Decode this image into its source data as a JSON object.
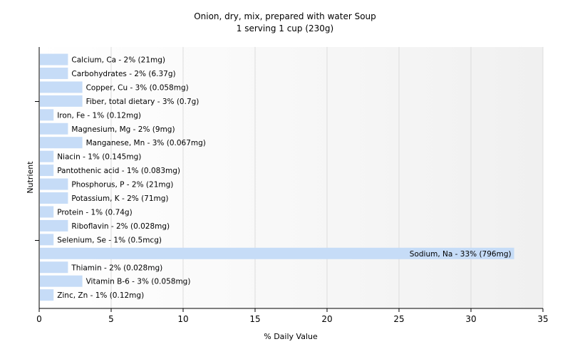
{
  "chart_data": {
    "type": "bar",
    "orientation": "horizontal",
    "title": "Onion, dry, mix, prepared with water Soup",
    "subtitle": "1 serving 1 cup (230g)",
    "xlabel": "% Daily Value",
    "ylabel": "Nutrient",
    "xlim": [
      0,
      35
    ],
    "xticks": [
      0,
      5,
      10,
      15,
      20,
      25,
      30,
      35
    ],
    "grid": true,
    "bar_color": "#c6dcf7",
    "categories": [
      "Calcium, Ca",
      "Carbohydrates",
      "Copper, Cu",
      "Fiber, total dietary",
      "Iron, Fe",
      "Magnesium, Mg",
      "Manganese, Mn",
      "Niacin",
      "Pantothenic acid",
      "Phosphorus, P",
      "Potassium, K",
      "Protein",
      "Riboflavin",
      "Selenium, Se",
      "Sodium, Na",
      "Thiamin",
      "Vitamin B-6",
      "Zinc, Zn"
    ],
    "values": [
      2,
      2,
      3,
      3,
      1,
      2,
      3,
      1,
      1,
      2,
      2,
      1,
      2,
      1,
      33,
      2,
      3,
      1
    ],
    "labels": [
      "Calcium, Ca - 2% (21mg)",
      "Carbohydrates - 2% (6.37g)",
      "Copper, Cu - 3% (0.058mg)",
      "Fiber, total dietary - 3% (0.7g)",
      "Iron, Fe - 1% (0.12mg)",
      "Magnesium, Mg - 2% (9mg)",
      "Manganese, Mn - 3% (0.067mg)",
      "Niacin - 1% (0.145mg)",
      "Pantothenic acid - 1% (0.083mg)",
      "Phosphorus, P - 2% (21mg)",
      "Potassium, K - 2% (71mg)",
      "Protein - 1% (0.74g)",
      "Riboflavin - 2% (0.028mg)",
      "Selenium, Se - 1% (0.5mcg)",
      "Sodium, Na - 33% (796mg)",
      "Thiamin - 2% (0.028mg)",
      "Vitamin B-6 - 3% (0.058mg)",
      "Zinc, Zn - 1% (0.12mg)"
    ]
  }
}
